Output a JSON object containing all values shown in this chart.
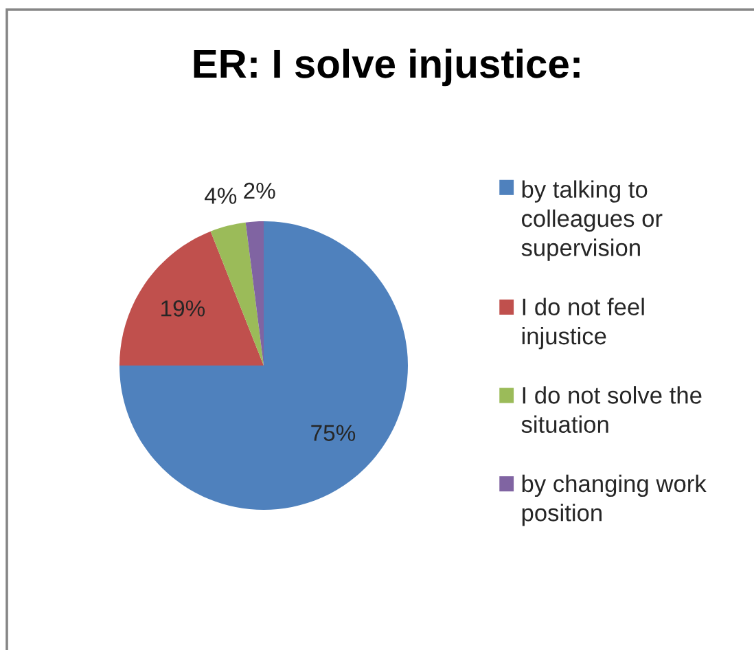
{
  "chart_data": {
    "type": "pie",
    "title": "ER: I solve injustice:",
    "categories": [
      "by talking to colleagues or supervision",
      "I do not feel injustice",
      "I do not solve the situation",
      "by changing work position"
    ],
    "values": [
      75,
      19,
      4,
      2
    ],
    "colors": [
      "#4f81bd",
      "#c0504d",
      "#9bbb59",
      "#8064a2"
    ],
    "value_labels": [
      "75%",
      "19%",
      "4%",
      "2%"
    ],
    "legend": "right"
  }
}
